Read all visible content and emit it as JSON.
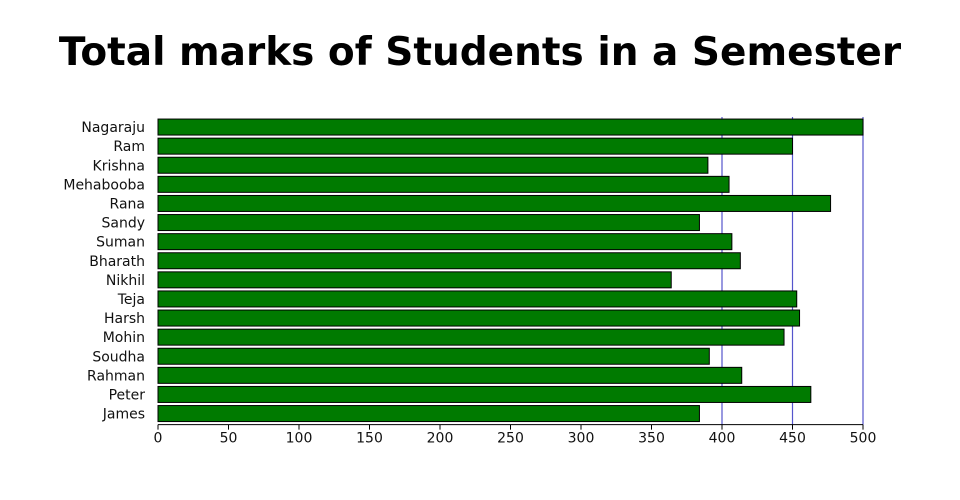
{
  "chart_data": {
    "type": "bar",
    "orientation": "horizontal",
    "title": "Total marks of Students in a Semester",
    "xlabel": "",
    "ylabel": "",
    "categories": [
      "Nagaraju",
      "Ram",
      "Krishna",
      "Mehabooba",
      "Rana",
      "Sandy",
      "Suman",
      "Bharath",
      "Nikhil",
      "Teja",
      "Harsh",
      "Mohin",
      "Soudha",
      "Rahman",
      "Peter",
      "James"
    ],
    "values": [
      500,
      450,
      390,
      405,
      477,
      384,
      407,
      413,
      364,
      453,
      455,
      444,
      391,
      414,
      463,
      384
    ],
    "xlim": [
      0,
      500
    ],
    "xticks": [
      0,
      50,
      100,
      150,
      200,
      250,
      300,
      350,
      400,
      450,
      500
    ],
    "grid": "vertical at 400, 450, 500",
    "colors": {
      "bar": "#007a00",
      "bar_edge": "#000000",
      "grid": "#5555cc",
      "axis": "#000000"
    }
  }
}
